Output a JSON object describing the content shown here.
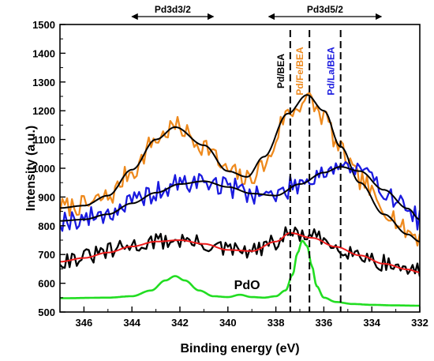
{
  "chart_data": {
    "type": "line",
    "xlabel": "Binding energy (eV)",
    "ylabel": "Intensity (a.u.)",
    "xlim": [
      347,
      332
    ],
    "ylim": [
      500,
      1500
    ],
    "x_reversed": true,
    "xticks": [
      346,
      344,
      342,
      340,
      338,
      336,
      334,
      332
    ],
    "yticks": [
      500,
      600,
      700,
      800,
      900,
      1000,
      1100,
      1200,
      1300,
      1400,
      1500
    ],
    "grid": false,
    "annotations": {
      "pd3d32": {
        "text": "Pd3d3/2",
        "x_from": 344.0,
        "x_to": 340.6
      },
      "pd3d52": {
        "text": "Pd3d5/2",
        "x_from": 338.3,
        "x_to": 333.6
      },
      "pdo": {
        "text": "PdO",
        "x": 339.2,
        "y": 580
      }
    },
    "vlines": [
      {
        "label": "Pd/BEA",
        "x": 337.4,
        "color": "#000000"
      },
      {
        "label": "Pd/Fe/BEA",
        "x": 336.6,
        "color": "#ee8a1e"
      },
      {
        "label": "Pd/La/BEA",
        "x": 335.3,
        "color": "#1a1adf"
      }
    ],
    "series": [
      {
        "role": "raw",
        "color": "#ee8a1e",
        "noise": 35,
        "seed": 7,
        "x": [
          347,
          346,
          345,
          344,
          343,
          342.2,
          341,
          340,
          339.2,
          338.5,
          337.5,
          336.7,
          336,
          335.3,
          334.5,
          333.5,
          332.5,
          332
        ],
        "y": [
          865,
          870,
          900,
          990,
          1100,
          1145,
          1080,
          990,
          960,
          1010,
          1190,
          1240,
          1180,
          1060,
          960,
          860,
          780,
          760
        ]
      },
      {
        "role": "fit",
        "color": "#000000",
        "x": [
          347,
          346,
          345,
          344,
          343,
          342.2,
          341,
          340,
          339.2,
          338.5,
          337.5,
          336.7,
          336,
          335.3,
          334.5,
          333.5,
          332.5,
          332
        ],
        "y": [
          862,
          870,
          905,
          995,
          1100,
          1143,
          1080,
          990,
          970,
          1040,
          1190,
          1255,
          1200,
          1075,
          950,
          840,
          770,
          745
        ]
      },
      {
        "role": "raw",
        "color": "#1a1adf",
        "noise": 38,
        "seed": 19,
        "x": [
          347,
          346,
          345,
          344,
          343,
          342,
          341,
          340,
          339,
          338,
          337,
          336,
          335.3,
          334.5,
          333.5,
          332.5,
          332
        ],
        "y": [
          820,
          825,
          845,
          880,
          915,
          945,
          955,
          935,
          915,
          905,
          950,
          990,
          1010,
          990,
          925,
          860,
          820
        ]
      },
      {
        "role": "fit",
        "color": "#000000",
        "x": [
          347,
          346,
          345,
          344,
          343,
          342,
          341,
          340,
          339,
          338,
          337,
          336,
          335.3,
          334.5,
          333.5,
          332.5,
          332
        ],
        "y": [
          817,
          822,
          840,
          878,
          915,
          945,
          955,
          935,
          912,
          905,
          945,
          985,
          1005,
          990,
          925,
          860,
          822
        ]
      },
      {
        "role": "raw",
        "color": "#000000",
        "noise": 30,
        "seed": 31,
        "x": [
          347,
          346,
          345,
          344,
          343,
          342,
          341,
          340,
          339,
          338,
          337.4,
          336.5,
          335.5,
          334.5,
          333.5,
          332.5,
          332
        ],
        "y": [
          680,
          690,
          710,
          730,
          745,
          750,
          735,
          715,
          710,
          740,
          775,
          760,
          730,
          700,
          670,
          650,
          640
        ]
      },
      {
        "role": "fit",
        "color": "#ee1c1c",
        "x": [
          347,
          346,
          345,
          344,
          343,
          342,
          341,
          340,
          339,
          338,
          337.4,
          336.5,
          335.5,
          334.5,
          333.5,
          332.5,
          332
        ],
        "y": [
          675,
          688,
          707,
          728,
          745,
          750,
          737,
          716,
          712,
          745,
          775,
          758,
          727,
          697,
          668,
          648,
          638
        ]
      },
      {
        "role": "reference",
        "name": "PdO",
        "color": "#22dd22",
        "x": [
          347,
          345,
          344,
          343.2,
          342.6,
          342.2,
          341.8,
          341.2,
          340.6,
          340,
          339.5,
          339,
          338.5,
          338,
          337.6,
          337.3,
          337.1,
          336.9,
          336.7,
          336.5,
          336.3,
          336,
          335.5,
          334.8,
          334,
          333,
          332
        ],
        "y": [
          548,
          550,
          555,
          575,
          610,
          625,
          610,
          575,
          555,
          552,
          560,
          552,
          550,
          555,
          575,
          630,
          705,
          748,
          730,
          660,
          590,
          550,
          535,
          528,
          525,
          523,
          522
        ]
      }
    ]
  }
}
